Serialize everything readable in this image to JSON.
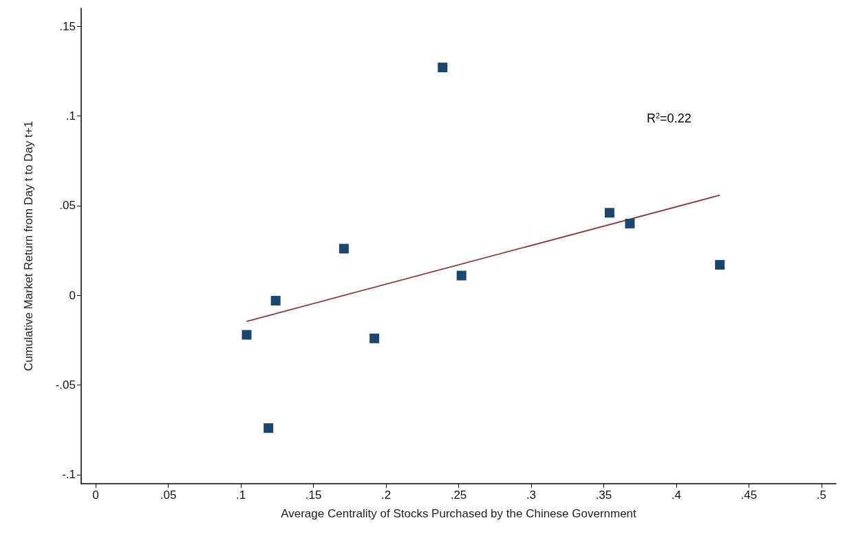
{
  "chart_data": {
    "type": "scatter",
    "xlabel": "Average Centrality of Stocks Purchased by the Chinese Government",
    "ylabel": "Cumulative Market Return from Day t to Day t+1",
    "xlim": [
      -0.01,
      0.51
    ],
    "xticks": [
      {
        "value": 0,
        "label": "0"
      },
      {
        "value": 0.05,
        "label": ".05"
      },
      {
        "value": 0.1,
        "label": ".1"
      },
      {
        "value": 0.15,
        "label": ".15"
      },
      {
        "value": 0.2,
        "label": ".2"
      },
      {
        "value": 0.25,
        "label": ".25"
      },
      {
        "value": 0.3,
        "label": ".3"
      },
      {
        "value": 0.35,
        "label": ".35"
      },
      {
        "value": 0.4,
        "label": ".4"
      },
      {
        "value": 0.45,
        "label": ".45"
      },
      {
        "value": 0.5,
        "label": ".5"
      }
    ],
    "ylim": [
      -0.105,
      0.16
    ],
    "yticks": [
      {
        "value": -0.1,
        "label": "-.1"
      },
      {
        "value": -0.05,
        "label": "-.05"
      },
      {
        "value": 0,
        "label": "0"
      },
      {
        "value": 0.05,
        "label": ".05"
      },
      {
        "value": 0.1,
        "label": ".1"
      },
      {
        "value": 0.15,
        "label": ".15"
      }
    ],
    "series": [
      {
        "color": "#1a476f",
        "marker": "square",
        "x": [
          0.104,
          0.119,
          0.124,
          0.171,
          0.192,
          0.239,
          0.252,
          0.354,
          0.368,
          0.43
        ],
        "values": [
          -0.022,
          -0.074,
          -0.003,
          0.026,
          -0.024,
          0.127,
          0.011,
          0.046,
          0.04,
          0.017
        ]
      },
      {
        "type": "line",
        "color": "#90353b",
        "marker": "none",
        "x": [
          0.104,
          0.43
        ],
        "values": [
          -0.0145,
          0.0558
        ]
      }
    ],
    "annotations": [
      "R$^{2}$=0.22"
    ],
    "grid": false
  }
}
